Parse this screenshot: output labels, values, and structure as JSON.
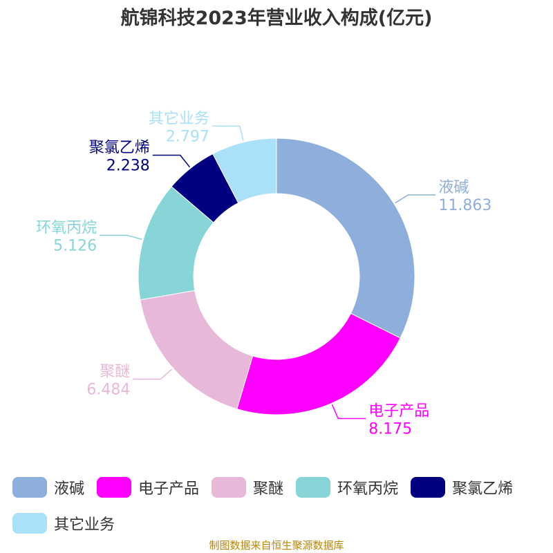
{
  "chart_data": {
    "type": "pie",
    "title": "航锦科技2023年营业收入构成(亿元)",
    "categories": [
      "液碱",
      "电子产品",
      "聚醚",
      "环氧丙烷",
      "聚氯乙烯",
      "其它业务"
    ],
    "values": [
      11.863,
      8.175,
      6.484,
      5.126,
      2.238,
      2.797
    ],
    "value_labels": [
      "11.863",
      "8.175",
      "6.484",
      "5.126",
      "2.238",
      "2.797"
    ],
    "colors": [
      "#8eaedb",
      "#ff00ff",
      "#e8b8d8",
      "#88d5d8",
      "#000080",
      "#aae0f8"
    ],
    "donut": true,
    "legend_position": "bottom"
  },
  "source": "制图数据来自恒生聚源数据库"
}
